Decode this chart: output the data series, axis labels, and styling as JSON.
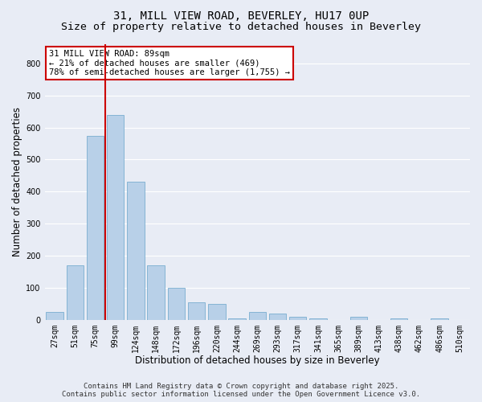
{
  "title_line1": "31, MILL VIEW ROAD, BEVERLEY, HU17 0UP",
  "title_line2": "Size of property relative to detached houses in Beverley",
  "xlabel": "Distribution of detached houses by size in Beverley",
  "ylabel": "Number of detached properties",
  "bar_color": "#b8d0e8",
  "bar_edge_color": "#7aaed0",
  "background_color": "#e8ecf5",
  "categories": [
    "27sqm",
    "51sqm",
    "75sqm",
    "99sqm",
    "124sqm",
    "148sqm",
    "172sqm",
    "196sqm",
    "220sqm",
    "244sqm",
    "269sqm",
    "293sqm",
    "317sqm",
    "341sqm",
    "365sqm",
    "389sqm",
    "413sqm",
    "438sqm",
    "462sqm",
    "486sqm",
    "510sqm"
  ],
  "values": [
    25,
    170,
    575,
    640,
    430,
    170,
    100,
    55,
    50,
    5,
    25,
    20,
    10,
    5,
    0,
    10,
    0,
    5,
    0,
    5,
    0
  ],
  "vline_pos": 2.5,
  "vline_color": "#cc0000",
  "ylim": [
    0,
    860
  ],
  "yticks": [
    0,
    100,
    200,
    300,
    400,
    500,
    600,
    700,
    800
  ],
  "annotation_text": "31 MILL VIEW ROAD: 89sqm\n← 21% of detached houses are smaller (469)\n78% of semi-detached houses are larger (1,755) →",
  "annotation_box_color": "#ffffff",
  "annotation_box_edge": "#cc0000",
  "footer_line1": "Contains HM Land Registry data © Crown copyright and database right 2025.",
  "footer_line2": "Contains public sector information licensed under the Open Government Licence v3.0.",
  "grid_color": "#ffffff",
  "title_fontsize": 10,
  "subtitle_fontsize": 9.5,
  "label_fontsize": 8.5,
  "tick_fontsize": 7,
  "footer_fontsize": 6.5,
  "ann_fontsize": 7.5
}
